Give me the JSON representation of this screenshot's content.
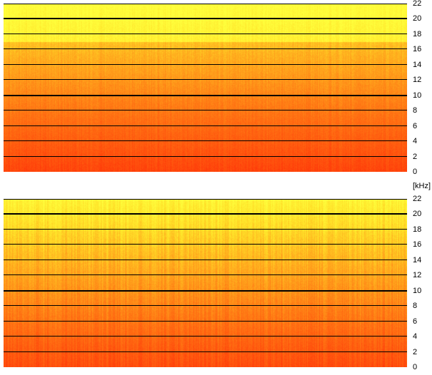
{
  "unit_label": "[kHz]",
  "colors": {
    "low": "#ff4a10",
    "mid": "#ffa21a",
    "high": "#ffff30",
    "grid": "#000000"
  },
  "chart_data": [
    {
      "type": "heatmap",
      "ylabel": "[kHz]",
      "ylim": [
        0,
        22
      ],
      "y_ticks": [
        "0",
        "2",
        "4",
        "6",
        "8",
        "10",
        "12",
        "14",
        "16",
        "18",
        "20",
        "22"
      ],
      "grid": true,
      "colormap": "red-orange-yellow (low → high frequency band brightness)"
    },
    {
      "type": "heatmap",
      "ylabel": "[kHz]",
      "ylim": [
        0,
        22
      ],
      "y_ticks": [
        "0",
        "2",
        "4",
        "6",
        "8",
        "10",
        "12",
        "14",
        "16",
        "18",
        "20",
        "22"
      ],
      "grid": true,
      "colormap": "red-orange-yellow (low → high frequency band brightness)"
    }
  ]
}
